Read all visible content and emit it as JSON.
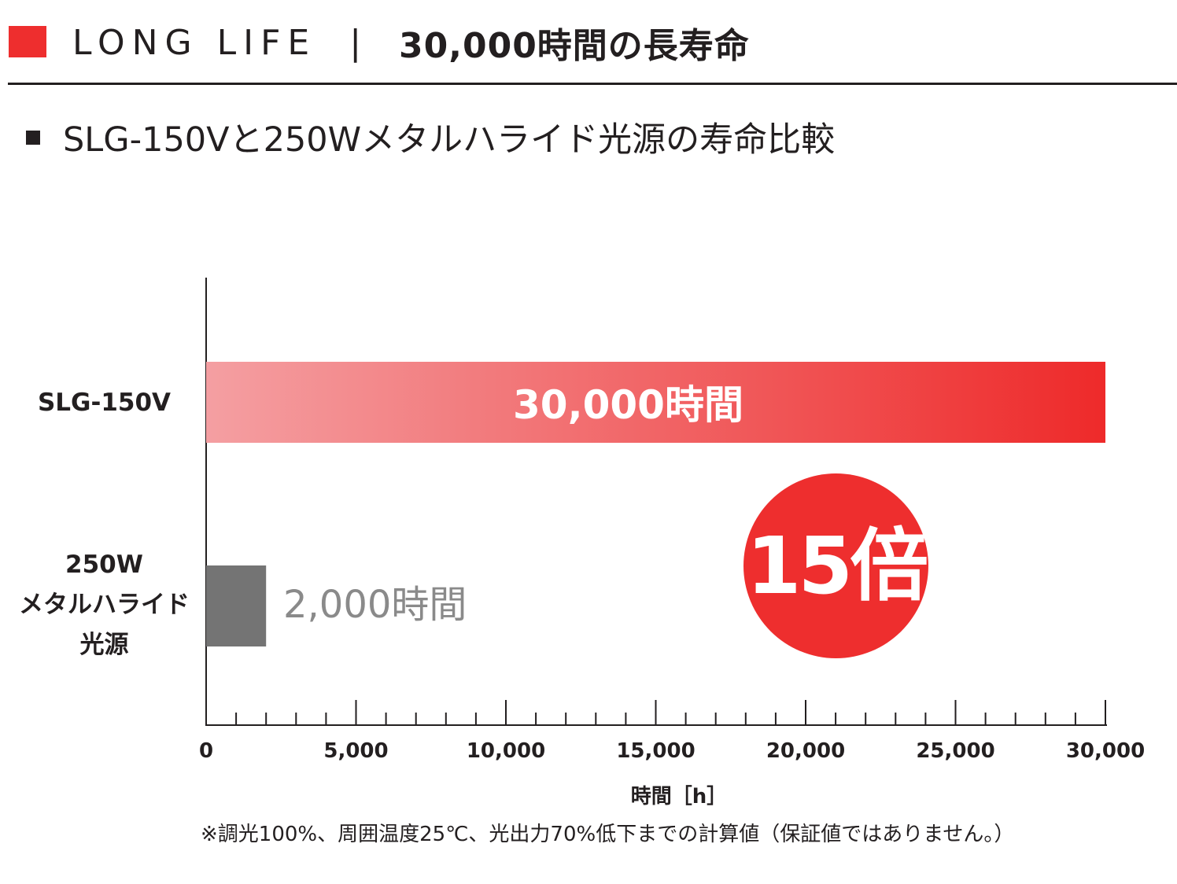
{
  "header": {
    "title_en": "LONG LIFE",
    "separator": "|",
    "title_jp": "30,000時間の長寿命",
    "accent_color": "#ee2e2e"
  },
  "subtitle": "SLG-150Vと250Wメタルハライド光源の寿命比較",
  "chart_data": {
    "type": "bar",
    "orientation": "horizontal",
    "categories": [
      "SLG-150V",
      "250W\nメタルハライド\n光源"
    ],
    "category_lines": [
      [
        "SLG-150V"
      ],
      [
        "250W",
        "メタルハライド",
        "光源"
      ]
    ],
    "values": [
      30000,
      2000
    ],
    "data_labels": [
      "30,000時間",
      "2,000時間"
    ],
    "xlabel": "時間［h］",
    "xlim": [
      0,
      30000
    ],
    "xticks": [
      0,
      5000,
      10000,
      15000,
      20000,
      25000,
      30000
    ],
    "xtick_labels": [
      "0",
      "5,000",
      "10,000",
      "15,000",
      "20,000",
      "25,000",
      "30,000"
    ],
    "minor_tick_step": 1000,
    "bar_colors": {
      "SLG-150V": {
        "gradient_from": "#f49fa2",
        "gradient_to": "#ee2a2a"
      },
      "250W": "#747474"
    },
    "data_label_colors": [
      "#ffffff",
      "#8a8a8a"
    ],
    "grid": false,
    "badge": {
      "text": "15倍",
      "color": "#ee2e2e"
    }
  },
  "footnote": "※調光100%、周囲温度25℃、光出力70%低下までの計算値（保証値ではありません。）"
}
